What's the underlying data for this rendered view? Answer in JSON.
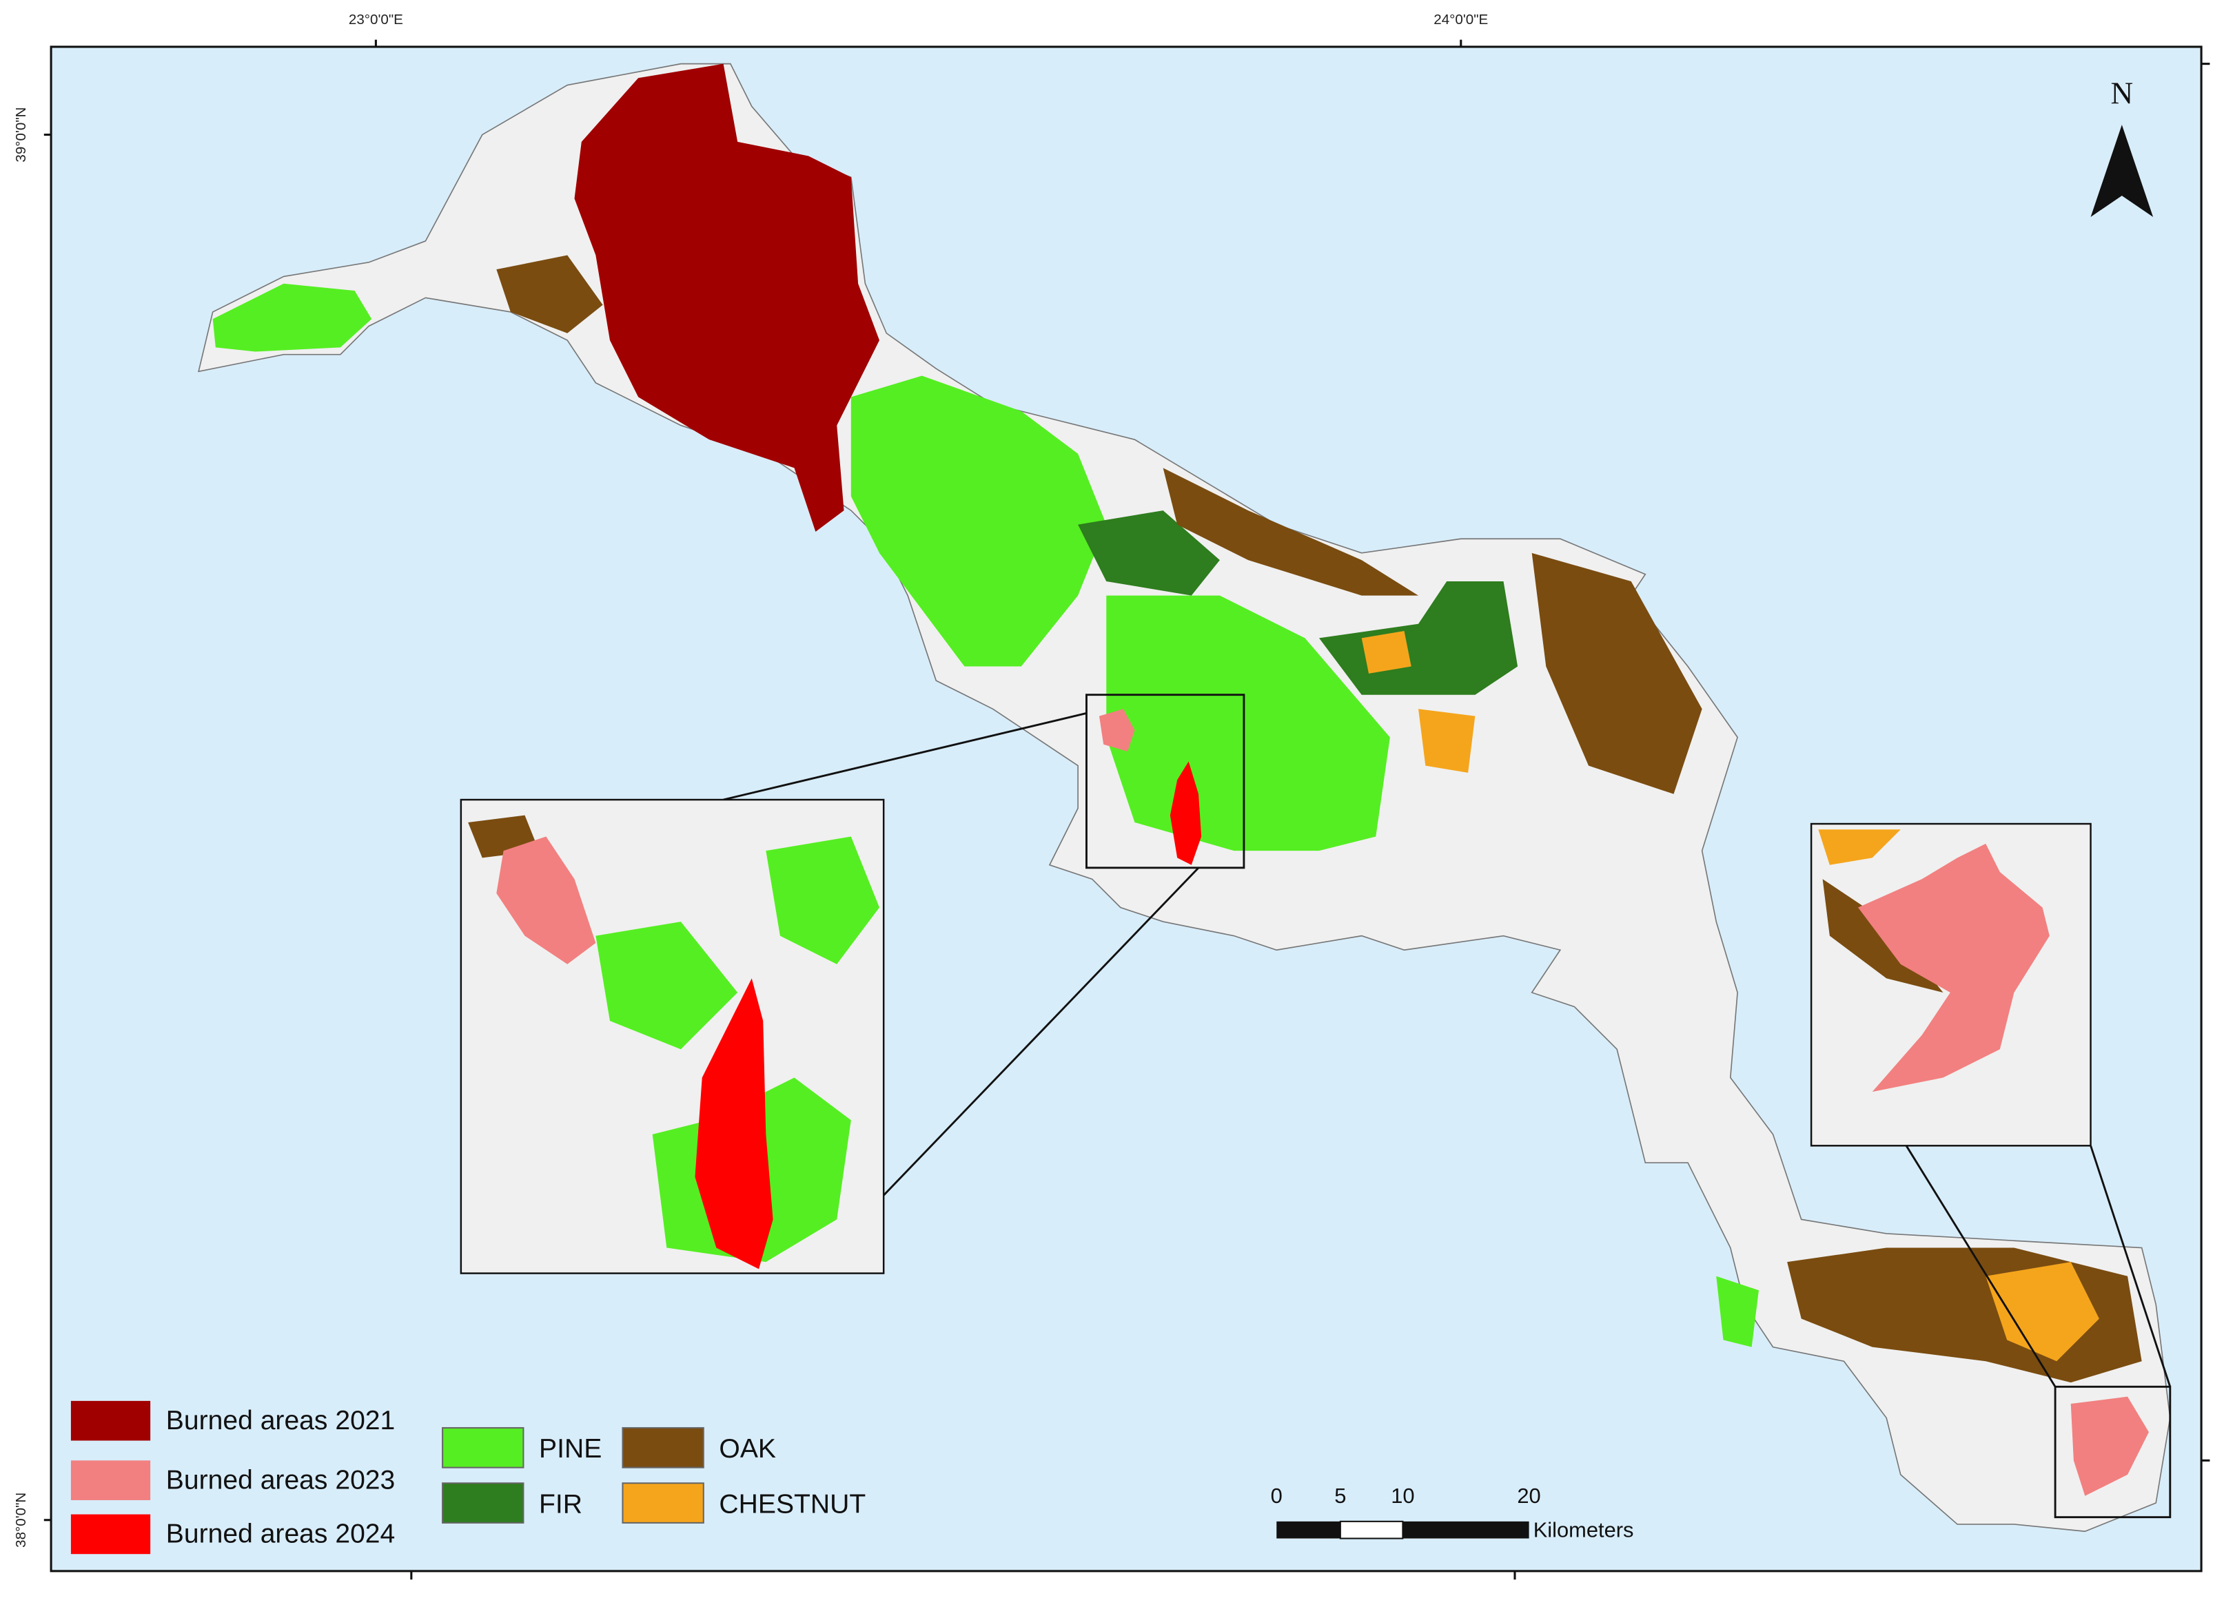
{
  "graticule": {
    "longitude_labels": [
      "23°0'0\"E",
      "24°0'0\"E"
    ],
    "latitude_labels": [
      "39°0'0\"N",
      "38°0'0\"N"
    ]
  },
  "north_arrow": {
    "label": "N"
  },
  "legend": {
    "items": [
      {
        "label": "Burned areas 2021",
        "color": "#a00000"
      },
      {
        "label": "Burned areas 2023",
        "color": "#f28080"
      },
      {
        "label": "Burned areas 2024",
        "color": "#ff0000"
      },
      {
        "label": "PINE",
        "color": "#55ee22"
      },
      {
        "label": "FIR",
        "color": "#2e7d1e"
      },
      {
        "label": "OAK",
        "color": "#7a4c10"
      },
      {
        "label": "CHESTNUT",
        "color": "#f5a51c"
      }
    ]
  },
  "scale_bar": {
    "labels": [
      "0",
      "5",
      "10",
      "20"
    ],
    "unit": "Kilometers"
  }
}
